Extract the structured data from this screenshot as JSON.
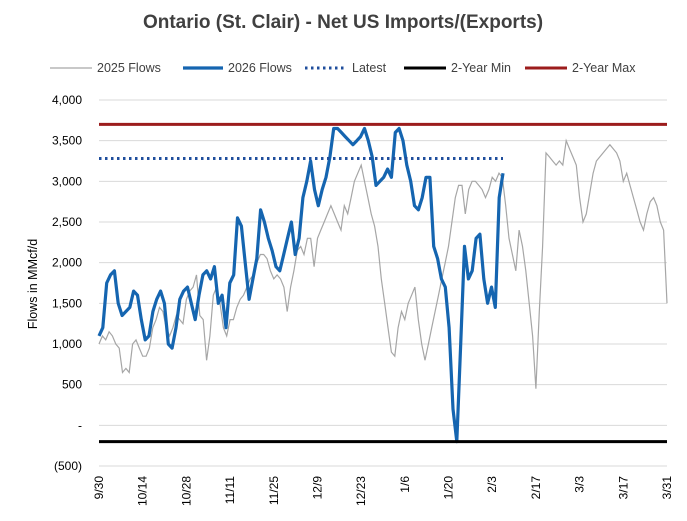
{
  "colors": {
    "flows_2025": "#a6a6a6",
    "flows_2026": "#1565b0",
    "latest": "#1f4e9c",
    "min": "#000000",
    "max": "#9c1c1c",
    "grid": "#d9d9d9"
  },
  "chart_data": {
    "type": "line",
    "title": "Ontario (St. Clair) - Net US Imports/(Exports)",
    "ylabel": "Flows in MMcf/d",
    "xlabel": "",
    "ylim": [
      -500,
      4000
    ],
    "y_ticks": [
      {
        "value": 4000,
        "label": "4,000"
      },
      {
        "value": 3500,
        "label": "3,500"
      },
      {
        "value": 3000,
        "label": "3,000"
      },
      {
        "value": 2500,
        "label": "2,500"
      },
      {
        "value": 2000,
        "label": "2,000"
      },
      {
        "value": 1500,
        "label": "1,500"
      },
      {
        "value": 1000,
        "label": "1,000"
      },
      {
        "value": 500,
        "label": "500"
      },
      {
        "value": 0,
        "label": "-"
      },
      {
        "value": -500,
        "label": "(500)"
      }
    ],
    "x_ticks": [
      "9/30",
      "10/14",
      "10/28",
      "11/11",
      "11/25",
      "12/9",
      "12/23",
      "1/6",
      "1/20",
      "2/3",
      "2/17",
      "3/3",
      "3/17",
      "3/31"
    ],
    "grid": true,
    "legend_position": "top",
    "legend": [
      {
        "key": "flows_2025",
        "label": "2025 Flows"
      },
      {
        "key": "flows_2026",
        "label": "2026 Flows"
      },
      {
        "key": "latest",
        "label": "Latest"
      },
      {
        "key": "min",
        "label": "2-Year Min"
      },
      {
        "key": "max",
        "label": "2-Year Max"
      }
    ],
    "series": [
      {
        "name": "2025 Flows",
        "values": [
          1000,
          1100,
          1050,
          1150,
          1100,
          1000,
          950,
          650,
          700,
          650,
          1000,
          1050,
          950,
          850,
          850,
          950,
          1200,
          1300,
          1450,
          1400,
          1200,
          1100,
          1200,
          1350,
          1300,
          1250,
          1550,
          1650,
          1700,
          1850,
          1350,
          1300,
          800,
          1100,
          1600,
          1700,
          1500,
          1200,
          1100,
          1300,
          1300,
          1450,
          1550,
          1600,
          1700,
          1800,
          1850,
          2000,
          2100,
          2100,
          2050,
          1900,
          1800,
          1850,
          1800,
          1700,
          1400,
          1700,
          1900,
          2150,
          2200,
          2100,
          2300,
          2300,
          1950,
          2300,
          2400,
          2500,
          2600,
          2700,
          2600,
          2500,
          2400,
          2700,
          2600,
          2800,
          3000,
          3100,
          3200,
          3000,
          2800,
          2600,
          2450,
          2200,
          1800,
          1500,
          1200,
          900,
          850,
          1200,
          1400,
          1300,
          1500,
          1600,
          1700,
          1300,
          1000,
          800,
          1000,
          1200,
          1400,
          1600,
          1800,
          2000,
          2200,
          2500,
          2800,
          2950,
          2950,
          2600,
          2900,
          3000,
          3000,
          2950,
          2900,
          2800,
          2900,
          3050,
          3000,
          3100,
          3050,
          2700,
          2300,
          2100,
          1900,
          2400,
          2200,
          1900,
          1500,
          1100,
          450,
          1400,
          2200,
          3350,
          3300,
          3250,
          3200,
          3250,
          3200,
          3500,
          3400,
          3300,
          3200,
          2800,
          2500,
          2600,
          2850,
          3100,
          3250,
          3300,
          3350,
          3400,
          3450,
          3400,
          3350,
          3250,
          3000,
          3100,
          2950,
          2800,
          2650,
          2500,
          2400,
          2600,
          2750,
          2800,
          2700,
          2500,
          2400,
          1500
        ],
        "anchor_values_2026": [
          1100,
          1200,
          1750,
          1850,
          1900,
          1500,
          1350,
          1400,
          1450,
          1650,
          1600,
          1300,
          1050,
          1100,
          1400,
          1550,
          1650,
          1500,
          1000,
          950,
          1200,
          1550,
          1650,
          1700,
          1500,
          1300,
          1600,
          1850,
          1900,
          1800,
          1950,
          1500,
          1600,
          1200,
          1750,
          1850,
          2550,
          2450,
          2000,
          1550,
          1800,
          2050,
          2650,
          2500,
          2300,
          2150,
          1950,
          1900,
          2100,
          2300,
          2500,
          2100,
          2300,
          2800,
          3000,
          3250,
          2900,
          2700,
          2900,
          3050,
          3300,
          3650,
          3650,
          3600,
          3550,
          3500,
          3450,
          3500,
          3550,
          3650,
          3500,
          3300,
          2950,
          3000,
          3050,
          3150,
          3050,
          3600,
          3650,
          3500,
          3200,
          3000,
          2700,
          2650,
          2800,
          3050,
          3050,
          2200,
          2050,
          1800,
          1700,
          1200,
          200,
          -200,
          1000,
          2200,
          1800,
          1900,
          2300,
          2350,
          1800,
          1500,
          1700,
          1450,
          2800,
          3100
        ]
      },
      {
        "name": "2026 Flows",
        "values": [
          1100,
          1200,
          1750,
          1850,
          1900,
          1500,
          1350,
          1400,
          1450,
          1650,
          1600,
          1300,
          1050,
          1100,
          1400,
          1550,
          1650,
          1500,
          1000,
          950,
          1200,
          1550,
          1650,
          1700,
          1500,
          1300,
          1600,
          1850,
          1900,
          1800,
          1950,
          1500,
          1600,
          1200,
          1750,
          1850,
          2550,
          2450,
          2000,
          1550,
          1800,
          2050,
          2650,
          2500,
          2300,
          2150,
          1950,
          1900,
          2100,
          2300,
          2500,
          2100,
          2300,
          2800,
          3000,
          3250,
          2900,
          2700,
          2900,
          3050,
          3300,
          3650,
          3650,
          3600,
          3550,
          3500,
          3450,
          3500,
          3550,
          3650,
          3500,
          3300,
          2950,
          3000,
          3050,
          3150,
          3050,
          3600,
          3650,
          3500,
          3200,
          3000,
          2700,
          2650,
          2800,
          3050,
          3050,
          2200,
          2050,
          1800,
          1700,
          1200,
          200,
          -200,
          1000,
          2200,
          1800,
          1900,
          2300,
          2350,
          1800,
          1500,
          1700,
          1450,
          2800,
          3100
        ]
      }
    ],
    "reference_lines": {
      "latest": 3280,
      "two_year_min": -200,
      "two_year_max": 3700
    }
  }
}
